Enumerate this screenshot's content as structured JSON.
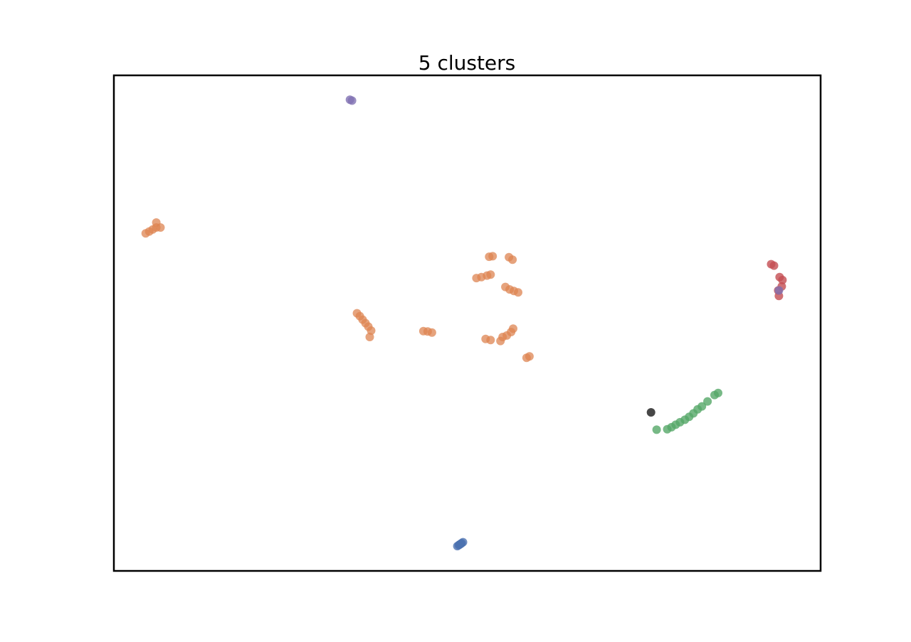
{
  "chart_data": {
    "type": "scatter",
    "title": "5 clusters",
    "xlabel": "",
    "ylabel": "",
    "xlim": [
      0,
      100
    ],
    "ylim": [
      0,
      100
    ],
    "grid": false,
    "axes_ticks": false,
    "series": [
      {
        "color": "#4c72b0",
        "opacity": 0.8,
        "points": [
          [
            48.6,
            5.0
          ],
          [
            48.8,
            5.2
          ],
          [
            49.0,
            5.4
          ],
          [
            49.2,
            5.6
          ],
          [
            49.4,
            5.8
          ],
          [
            48.9,
            5.3
          ],
          [
            49.1,
            5.5
          ]
        ]
      },
      {
        "color": "#dd8452",
        "opacity": 0.75,
        "points": [
          [
            4.5,
            68.1
          ],
          [
            5.0,
            68.5
          ],
          [
            5.5,
            68.9
          ],
          [
            6.0,
            69.3
          ],
          [
            6.0,
            70.3
          ],
          [
            6.6,
            69.3
          ],
          [
            34.4,
            52.0
          ],
          [
            34.8,
            51.4
          ],
          [
            35.2,
            50.7
          ],
          [
            35.6,
            50.0
          ],
          [
            36.0,
            49.3
          ],
          [
            36.4,
            48.5
          ],
          [
            36.2,
            47.2
          ],
          [
            43.8,
            48.4
          ],
          [
            44.4,
            48.3
          ],
          [
            45.0,
            48.1
          ],
          [
            51.3,
            59.1
          ],
          [
            52.0,
            59.3
          ],
          [
            52.8,
            59.6
          ],
          [
            53.3,
            59.8
          ],
          [
            53.1,
            63.4
          ],
          [
            53.6,
            63.5
          ],
          [
            55.9,
            63.3
          ],
          [
            56.4,
            62.8
          ],
          [
            55.4,
            57.3
          ],
          [
            56.0,
            56.8
          ],
          [
            56.6,
            56.5
          ],
          [
            57.2,
            56.2
          ],
          [
            52.6,
            46.8
          ],
          [
            53.3,
            46.6
          ],
          [
            54.7,
            46.4
          ],
          [
            55.0,
            47.2
          ],
          [
            55.6,
            47.5
          ],
          [
            56.2,
            48.2
          ],
          [
            56.5,
            48.9
          ],
          [
            58.4,
            43.0
          ],
          [
            58.8,
            43.3
          ]
        ]
      },
      {
        "color": "#55a868",
        "opacity": 0.8,
        "points": [
          [
            76.8,
            28.5
          ],
          [
            78.3,
            28.6
          ],
          [
            78.9,
            29.0
          ],
          [
            79.5,
            29.5
          ],
          [
            80.1,
            30.0
          ],
          [
            80.8,
            30.5
          ],
          [
            81.4,
            31.1
          ],
          [
            82.0,
            31.8
          ],
          [
            82.6,
            32.6
          ],
          [
            83.2,
            33.2
          ],
          [
            84.0,
            34.2
          ],
          [
            85.0,
            35.5
          ],
          [
            85.5,
            35.9
          ]
        ]
      },
      {
        "color": "#c44e52",
        "opacity": 0.8,
        "points": [
          [
            93.0,
            61.9
          ],
          [
            93.4,
            61.6
          ],
          [
            94.2,
            59.3
          ],
          [
            94.6,
            58.7
          ],
          [
            94.5,
            57.4
          ],
          [
            94.0,
            56.6
          ],
          [
            94.1,
            55.5
          ]
        ]
      },
      {
        "color": "#8172b3",
        "opacity": 0.8,
        "points": [
          [
            33.4,
            95.1
          ],
          [
            33.7,
            94.9
          ],
          [
            94.1,
            56.6
          ]
        ]
      },
      {
        "color": "#333333",
        "opacity": 0.9,
        "points": [
          [
            76.0,
            32.0
          ]
        ]
      }
    ]
  }
}
